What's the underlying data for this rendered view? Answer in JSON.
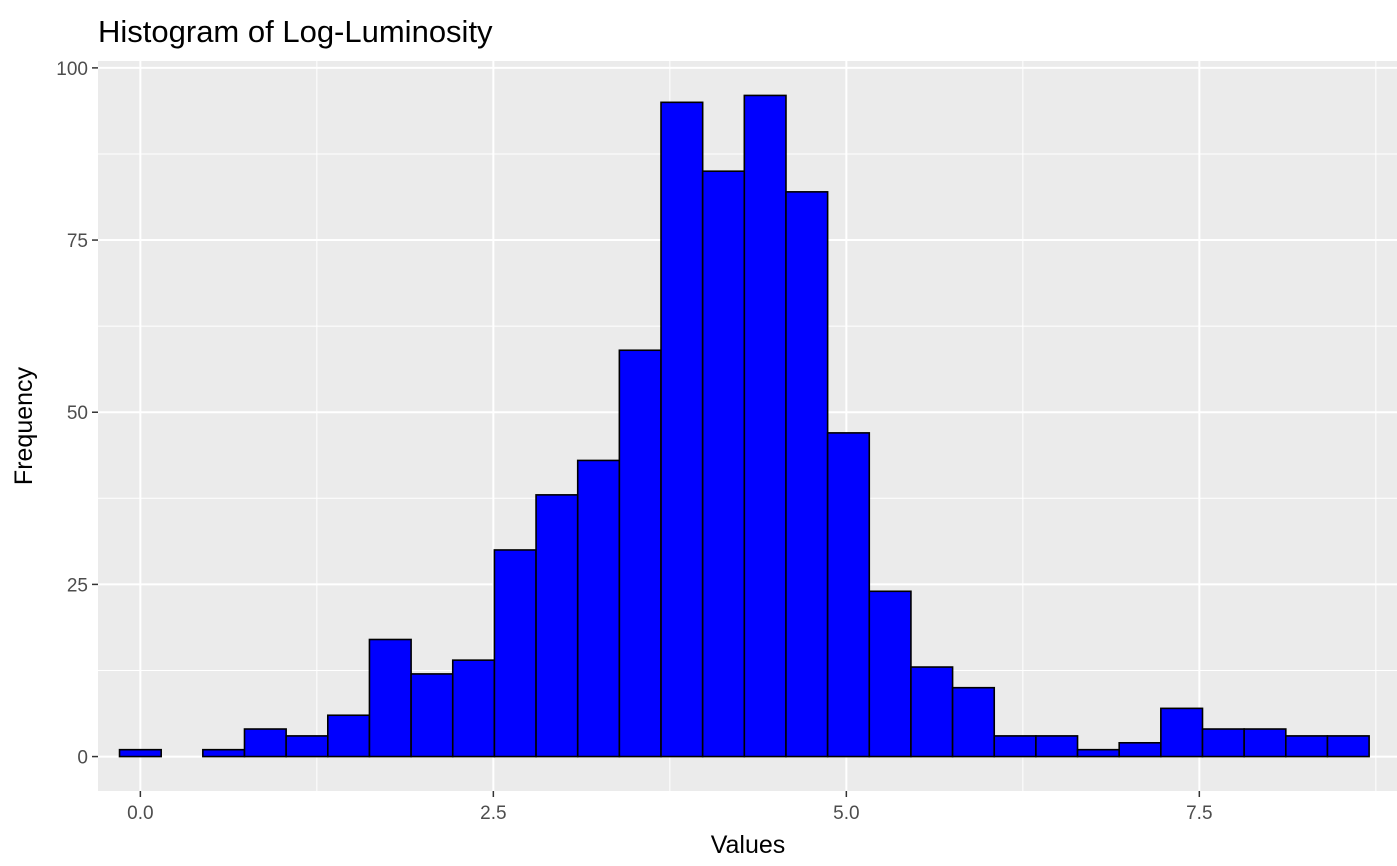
{
  "chart_data": {
    "type": "bar",
    "title": "Histogram of Log-Luminosity",
    "xlabel": "Values",
    "ylabel": "Frequency",
    "xlim": [
      -0.3,
      8.9
    ],
    "ylim": [
      -5,
      101
    ],
    "bin_width": 0.295,
    "bins": [
      {
        "x": 0.0,
        "count": 1
      },
      {
        "x": 0.295,
        "count": 0
      },
      {
        "x": 0.59,
        "count": 1
      },
      {
        "x": 0.885,
        "count": 4
      },
      {
        "x": 1.18,
        "count": 3
      },
      {
        "x": 1.475,
        "count": 6
      },
      {
        "x": 1.77,
        "count": 17
      },
      {
        "x": 2.065,
        "count": 12
      },
      {
        "x": 2.36,
        "count": 14
      },
      {
        "x": 2.655,
        "count": 30
      },
      {
        "x": 2.95,
        "count": 38
      },
      {
        "x": 3.245,
        "count": 43
      },
      {
        "x": 3.54,
        "count": 59
      },
      {
        "x": 3.835,
        "count": 95
      },
      {
        "x": 4.13,
        "count": 85
      },
      {
        "x": 4.425,
        "count": 96
      },
      {
        "x": 4.72,
        "count": 82
      },
      {
        "x": 5.015,
        "count": 47
      },
      {
        "x": 5.31,
        "count": 24
      },
      {
        "x": 5.605,
        "count": 13
      },
      {
        "x": 5.9,
        "count": 10
      },
      {
        "x": 6.195,
        "count": 3
      },
      {
        "x": 6.49,
        "count": 3
      },
      {
        "x": 6.785,
        "count": 1
      },
      {
        "x": 7.08,
        "count": 2
      },
      {
        "x": 7.375,
        "count": 7
      },
      {
        "x": 7.67,
        "count": 4
      },
      {
        "x": 7.965,
        "count": 4
      },
      {
        "x": 8.26,
        "count": 3
      },
      {
        "x": 8.555,
        "count": 3
      }
    ],
    "x_ticks": [
      {
        "value": 0,
        "label": "0.0"
      },
      {
        "value": 2.5,
        "label": "2.5"
      },
      {
        "value": 5,
        "label": "5.0"
      },
      {
        "value": 7.5,
        "label": "7.5"
      }
    ],
    "y_ticks": [
      {
        "value": 0,
        "label": "0"
      },
      {
        "value": 25,
        "label": "25"
      },
      {
        "value": 50,
        "label": "50"
      },
      {
        "value": 75,
        "label": "75"
      },
      {
        "value": 100,
        "label": "100"
      }
    ],
    "fill_color": "#0000ff",
    "outline_color": "#000000",
    "panel_background": "#ebebeb",
    "grid_color": "#ffffff",
    "grid": true,
    "legend": "none"
  }
}
